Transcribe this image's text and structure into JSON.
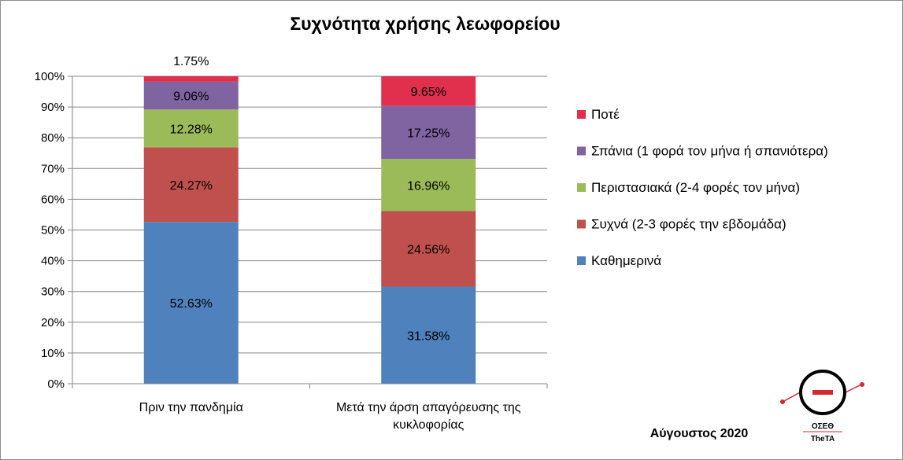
{
  "chart_data": {
    "type": "bar",
    "stacked": true,
    "title": "Συχνότητα χρήσης λεωφορείου",
    "categories": [
      [
        "Πριν την πανδημία"
      ],
      [
        "Μετά την άρση απαγόρευσης της",
        "κυκλοφορίας"
      ]
    ],
    "series": [
      {
        "name": "Καθημερινά",
        "color": "#4f81bd",
        "values": [
          52.63,
          31.58
        ],
        "labels": [
          "52.63%",
          "31.58%"
        ]
      },
      {
        "name": "Συχνά (2-3 φορές την εβδομάδα)",
        "color": "#c0504d",
        "values": [
          24.27,
          24.56
        ],
        "labels": [
          "24.27%",
          "24.56%"
        ]
      },
      {
        "name": "Περιστασιακά (2-4 φορές τον μήνα)",
        "color": "#9bbb59",
        "values": [
          12.28,
          16.96
        ],
        "labels": [
          "12.28%",
          "16.96%"
        ]
      },
      {
        "name": "Σπάνια (1 φορά τον μήνα ή σπανιότερα)",
        "color": "#8064a2",
        "values": [
          9.06,
          17.25
        ],
        "labels": [
          "9.06%",
          "17.25%"
        ]
      },
      {
        "name": "Ποτέ",
        "color": "#e0304e",
        "values": [
          1.75,
          9.65
        ],
        "labels": [
          "1.75%",
          "9.65%"
        ]
      }
    ],
    "ylim": [
      0,
      100
    ],
    "yticks": [
      "0%",
      "10%",
      "20%",
      "30%",
      "40%",
      "50%",
      "60%",
      "70%",
      "80%",
      "90%",
      "100%"
    ],
    "grid": true,
    "legend_position": "right"
  },
  "footer": {
    "date_label": "Αύγουστος 2020",
    "logo_line1": "ΟΣΕΘ",
    "logo_line2": "TheTA"
  },
  "colors": {
    "grid": "#868686",
    "logo_red": "#d7262f"
  }
}
